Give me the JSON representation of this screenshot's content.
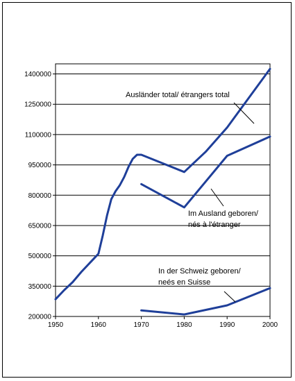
{
  "chart_data": {
    "type": "line",
    "title": "",
    "xlabel": "",
    "ylabel": "",
    "xlim": [
      1950,
      2000
    ],
    "ylim": [
      200000,
      1400000
    ],
    "x_ticks": [
      "1950",
      "1960",
      "1970",
      "1980",
      "1990",
      "2000"
    ],
    "y_ticks": [
      "200000",
      "350000",
      "500000",
      "650000",
      "800000",
      "950000",
      "1100000",
      "1250000",
      "1400000"
    ],
    "grid": "horizontal",
    "line_color": "#1f3f99",
    "series": [
      {
        "name": "Ausländer total/ étrangers total",
        "points": [
          [
            1950,
            285000
          ],
          [
            1952,
            330000
          ],
          [
            1954,
            370000
          ],
          [
            1956,
            420000
          ],
          [
            1958,
            465000
          ],
          [
            1960,
            510000
          ],
          [
            1961,
            600000
          ],
          [
            1962,
            700000
          ],
          [
            1963,
            780000
          ],
          [
            1964,
            820000
          ],
          [
            1965,
            850000
          ],
          [
            1966,
            890000
          ],
          [
            1967,
            940000
          ],
          [
            1968,
            980000
          ],
          [
            1969,
            1000000
          ],
          [
            1970,
            1000000
          ],
          [
            1980,
            915000
          ],
          [
            1985,
            1015000
          ],
          [
            1990,
            1135000
          ],
          [
            2000,
            1425000
          ]
        ]
      },
      {
        "name": "Im Ausland geboren/ nés à l'étranger",
        "points": [
          [
            1970,
            855000
          ],
          [
            1980,
            740000
          ],
          [
            1990,
            995000
          ],
          [
            2000,
            1090000
          ]
        ]
      },
      {
        "name": "In der Schweiz geboren/ neés en Suisse",
        "points": [
          [
            1970,
            230000
          ],
          [
            1980,
            210000
          ],
          [
            1990,
            255000
          ],
          [
            2000,
            340000
          ]
        ]
      }
    ],
    "annotations": [
      {
        "lines": [
          "Ausländer total/ étrangers total"
        ],
        "series": 0
      },
      {
        "lines": [
          "Im Ausland geboren/",
          "nés à l'étranger"
        ],
        "series": 1
      },
      {
        "lines": [
          "In der Schweiz geboren/",
          "neés en Suisse"
        ],
        "series": 2
      }
    ]
  }
}
